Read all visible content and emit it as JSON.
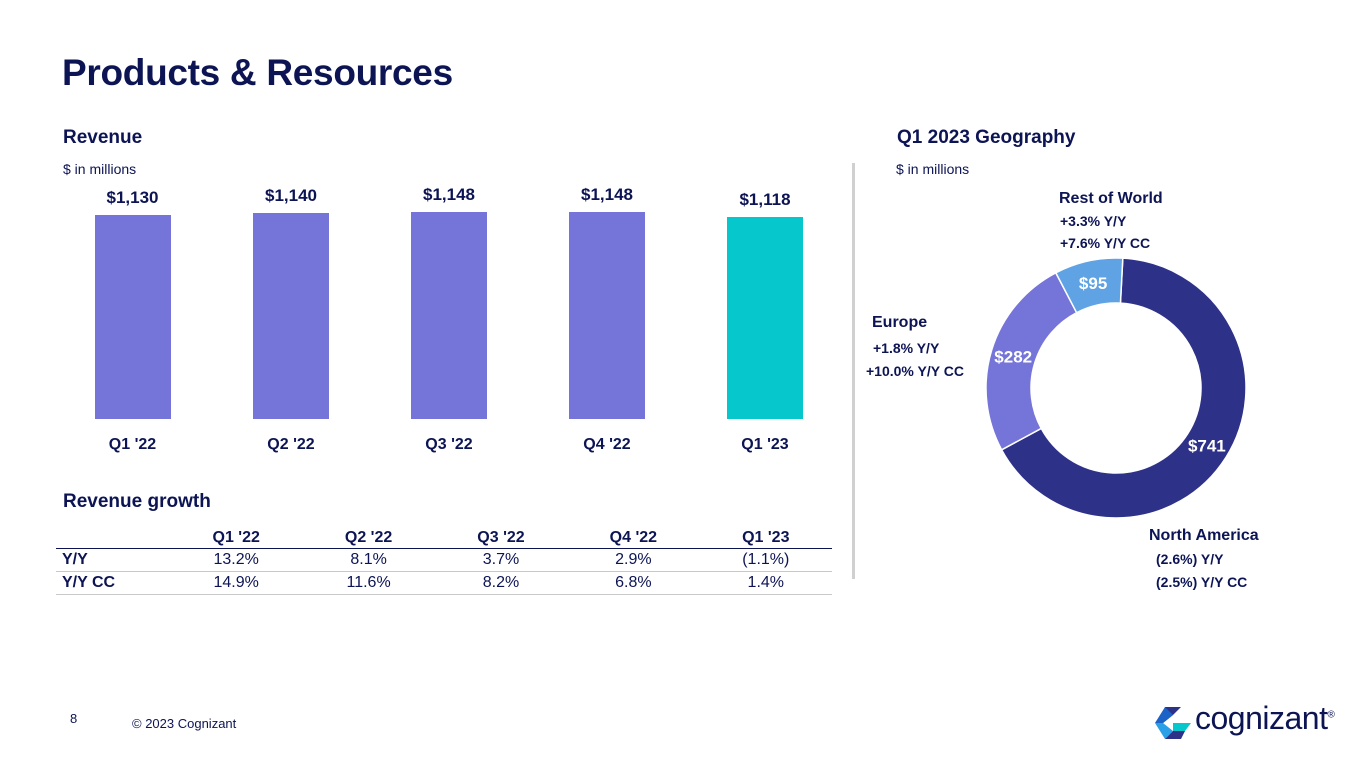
{
  "page": {
    "title": "Products & Resources",
    "page_number": "8",
    "copyright": "© 2023 Cognizant",
    "logo_text": "cognizant",
    "logo_mark": "®"
  },
  "revenue": {
    "heading": "Revenue",
    "unit": "$ in millions"
  },
  "growth": {
    "heading": "Revenue growth",
    "columns": [
      "Q1 '22",
      "Q2 '22",
      "Q3 '22",
      "Q4 '22",
      "Q1 '23"
    ],
    "rows": [
      {
        "label": "Y/Y",
        "values": [
          "13.2%",
          "8.1%",
          "3.7%",
          "2.9%",
          "(1.1%)"
        ]
      },
      {
        "label": "Y/Y CC",
        "values": [
          "14.9%",
          "11.6%",
          "8.2%",
          "6.8%",
          "1.4%"
        ]
      }
    ]
  },
  "geography": {
    "heading": "Q1 2023 Geography",
    "unit": "$ in millions",
    "rest_of_world": {
      "name": "Rest of World",
      "yy": "+3.3%  Y/Y",
      "yycc": "+7.6%  Y/Y CC"
    },
    "europe": {
      "name": "Europe",
      "yy": "+1.8%  Y/Y",
      "yycc": "+10.0% Y/Y CC"
    },
    "north_america": {
      "name": "North America",
      "yy": "(2.6%) Y/Y",
      "yycc": "(2.5%) Y/Y CC"
    }
  },
  "colors": {
    "bar": "#7474d9",
    "bar_highlight": "#06c7cc",
    "north_america": "#2e3188",
    "europe": "#7474d9",
    "rest_of_world": "#5fa3e4",
    "navy": "#0c1454"
  },
  "chart_data": [
    {
      "type": "bar",
      "title": "Revenue",
      "categories": [
        "Q1 '22",
        "Q2 '22",
        "Q3 '22",
        "Q4 '22",
        "Q1 '23"
      ],
      "values": [
        1130,
        1140,
        1148,
        1148,
        1118
      ],
      "value_labels": [
        "$1,130",
        "$1,140",
        "$1,148",
        "$1,148",
        "$1,118"
      ],
      "ylabel": "$ in millions",
      "ylim": [
        0,
        1148
      ],
      "grid": false
    },
    {
      "type": "pie",
      "title": "Q1 2023 Geography",
      "categories": [
        "North America",
        "Europe",
        "Rest of World"
      ],
      "values": [
        741,
        282,
        95
      ],
      "value_labels": [
        "$741",
        "$282",
        "$95"
      ]
    }
  ]
}
